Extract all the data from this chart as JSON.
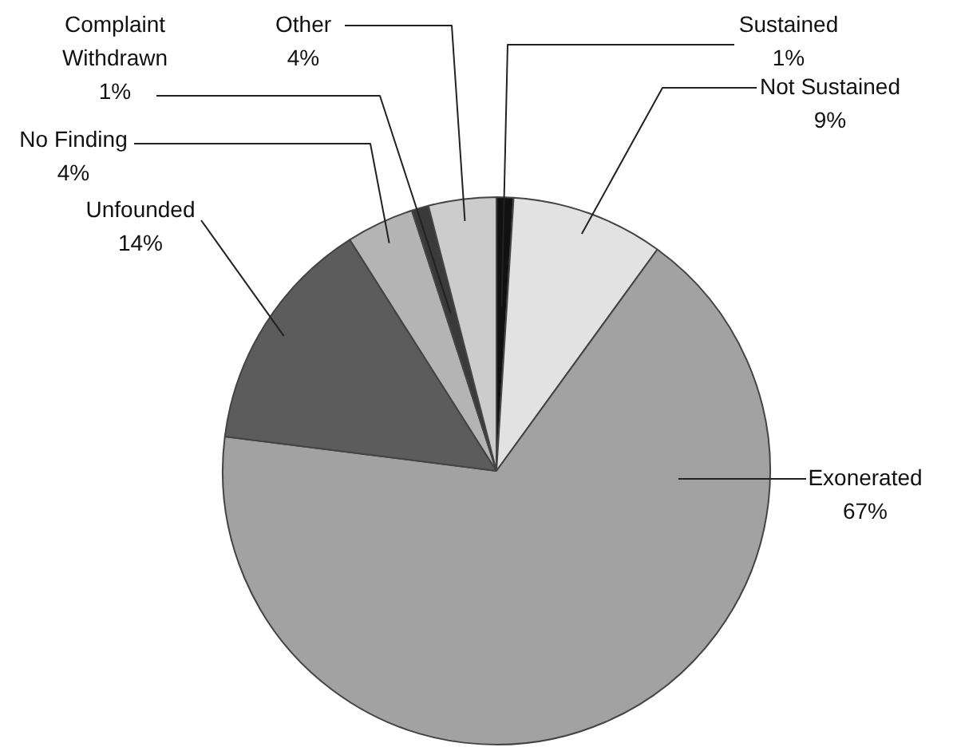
{
  "chart_data": {
    "type": "pie",
    "categories": [
      "Sustained",
      "Not Sustained",
      "Exonerated",
      "Unfounded",
      "No Finding",
      "Complaint Withdrawn",
      "Other"
    ],
    "values": [
      1,
      9,
      67,
      14,
      4,
      1,
      4
    ],
    "value_labels": [
      "1%",
      "9%",
      "67%",
      "14%",
      "4%",
      "1%",
      "4%"
    ],
    "colors": [
      "#111111",
      "#e2e2e2",
      "#a2a2a2",
      "#5c5c5c",
      "#b4b4b4",
      "#3a3a3a",
      "#cccccc"
    ],
    "legend": false
  }
}
